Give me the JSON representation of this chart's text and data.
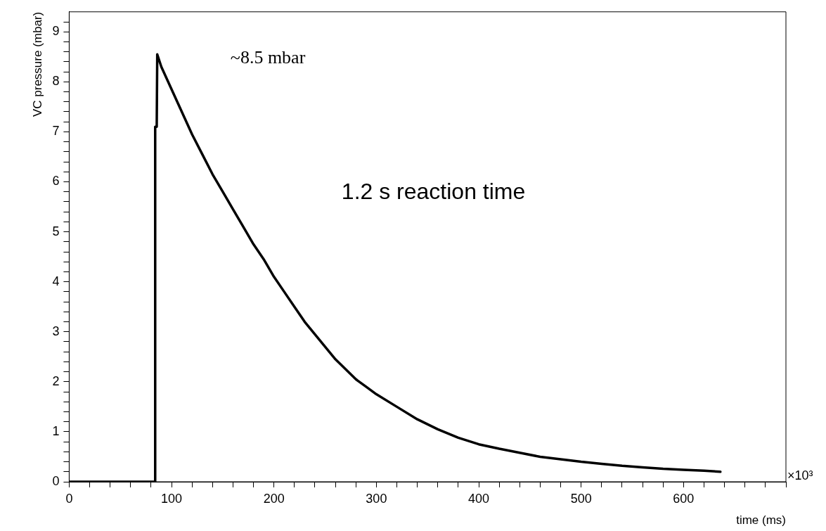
{
  "chart_data": {
    "type": "line",
    "xlabel": "time (ms)",
    "ylabel": "VC pressure (mbar)",
    "xlim": [
      0,
      700
    ],
    "ylim": [
      0,
      9.4
    ],
    "xticks": [
      0,
      {
        "value": 20,
        "label": null
      },
      {
        "value": 40,
        "label": null
      },
      {
        "value": 60,
        "label": null
      },
      {
        "value": 80,
        "label": null
      },
      100,
      {
        "value": 120,
        "label": null
      },
      {
        "value": 140,
        "label": null
      },
      {
        "value": 160,
        "label": null
      },
      {
        "value": 180,
        "label": null
      },
      200,
      {
        "value": 220,
        "label": null
      },
      {
        "value": 240,
        "label": null
      },
      {
        "value": 260,
        "label": null
      },
      {
        "value": 280,
        "label": null
      },
      300,
      {
        "value": 320,
        "label": null
      },
      {
        "value": 340,
        "label": null
      },
      {
        "value": 360,
        "label": null
      },
      {
        "value": 380,
        "label": null
      },
      400,
      {
        "value": 420,
        "label": null
      },
      {
        "value": 440,
        "label": null
      },
      {
        "value": 460,
        "label": null
      },
      {
        "value": 480,
        "label": null
      },
      500,
      {
        "value": 520,
        "label": null
      },
      {
        "value": 540,
        "label": null
      },
      {
        "value": 560,
        "label": null
      },
      {
        "value": 580,
        "label": null
      },
      600,
      {
        "value": 620,
        "label": null
      },
      {
        "value": 640,
        "label": null
      },
      {
        "value": 660,
        "label": null
      },
      {
        "value": 680,
        "label": null
      },
      {
        "value": 700,
        "label": null
      }
    ],
    "yticks": [
      0,
      {
        "value": 0.2,
        "label": null
      },
      {
        "value": 0.4,
        "label": null
      },
      {
        "value": 0.6,
        "label": null
      },
      {
        "value": 0.8,
        "label": null
      },
      1,
      {
        "value": 1.2,
        "label": null
      },
      {
        "value": 1.4,
        "label": null
      },
      {
        "value": 1.6,
        "label": null
      },
      {
        "value": 1.8,
        "label": null
      },
      2,
      {
        "value": 2.2,
        "label": null
      },
      {
        "value": 2.4,
        "label": null
      },
      {
        "value": 2.6,
        "label": null
      },
      {
        "value": 2.8,
        "label": null
      },
      3,
      {
        "value": 3.2,
        "label": null
      },
      {
        "value": 3.4,
        "label": null
      },
      {
        "value": 3.6,
        "label": null
      },
      {
        "value": 3.8,
        "label": null
      },
      4,
      {
        "value": 4.2,
        "label": null
      },
      {
        "value": 4.4,
        "label": null
      },
      {
        "value": 4.6,
        "label": null
      },
      {
        "value": 4.8,
        "label": null
      },
      5,
      {
        "value": 5.2,
        "label": null
      },
      {
        "value": 5.4,
        "label": null
      },
      {
        "value": 5.6,
        "label": null
      },
      {
        "value": 5.8,
        "label": null
      },
      6,
      {
        "value": 6.2,
        "label": null
      },
      {
        "value": 6.4,
        "label": null
      },
      {
        "value": 6.6,
        "label": null
      },
      {
        "value": 6.8,
        "label": null
      },
      7,
      {
        "value": 7.2,
        "label": null
      },
      {
        "value": 7.4,
        "label": null
      },
      {
        "value": 7.6,
        "label": null
      },
      {
        "value": 7.8,
        "label": null
      },
      8,
      {
        "value": 8.2,
        "label": null
      },
      {
        "value": 8.4,
        "label": null
      },
      {
        "value": 8.6,
        "label": null
      },
      {
        "value": 8.8,
        "label": null
      },
      9,
      {
        "value": 9.2,
        "label": null
      }
    ],
    "x": [
      0,
      83.5,
      84,
      85.5,
      86,
      90,
      100,
      110,
      120,
      130,
      140,
      150,
      160,
      170,
      180,
      190,
      200,
      210,
      220,
      230,
      240,
      250,
      260,
      270,
      280,
      290,
      300,
      320,
      340,
      360,
      380,
      400,
      420,
      440,
      460,
      480,
      500,
      520,
      540,
      560,
      580,
      600,
      620,
      636
    ],
    "series": [
      {
        "color": "#000000",
        "values": [
          0,
          0,
          7.1,
          7.1,
          8.55,
          8.3,
          7.85,
          7.4,
          6.95,
          6.55,
          6.15,
          5.8,
          5.45,
          5.1,
          4.75,
          4.45,
          4.1,
          3.8,
          3.5,
          3.2,
          2.95,
          2.7,
          2.45,
          2.25,
          2.05,
          1.9,
          1.75,
          1.5,
          1.25,
          1.05,
          0.88,
          0.75,
          0.66,
          0.58,
          0.5,
          0.45,
          0.4,
          0.36,
          0.32,
          0.29,
          0.26,
          0.24,
          0.22,
          0.2
        ]
      }
    ],
    "annotations": [
      "~8.5 mbar",
      "1.2 s reaction time",
      "×10³"
    ],
    "legend": false
  }
}
